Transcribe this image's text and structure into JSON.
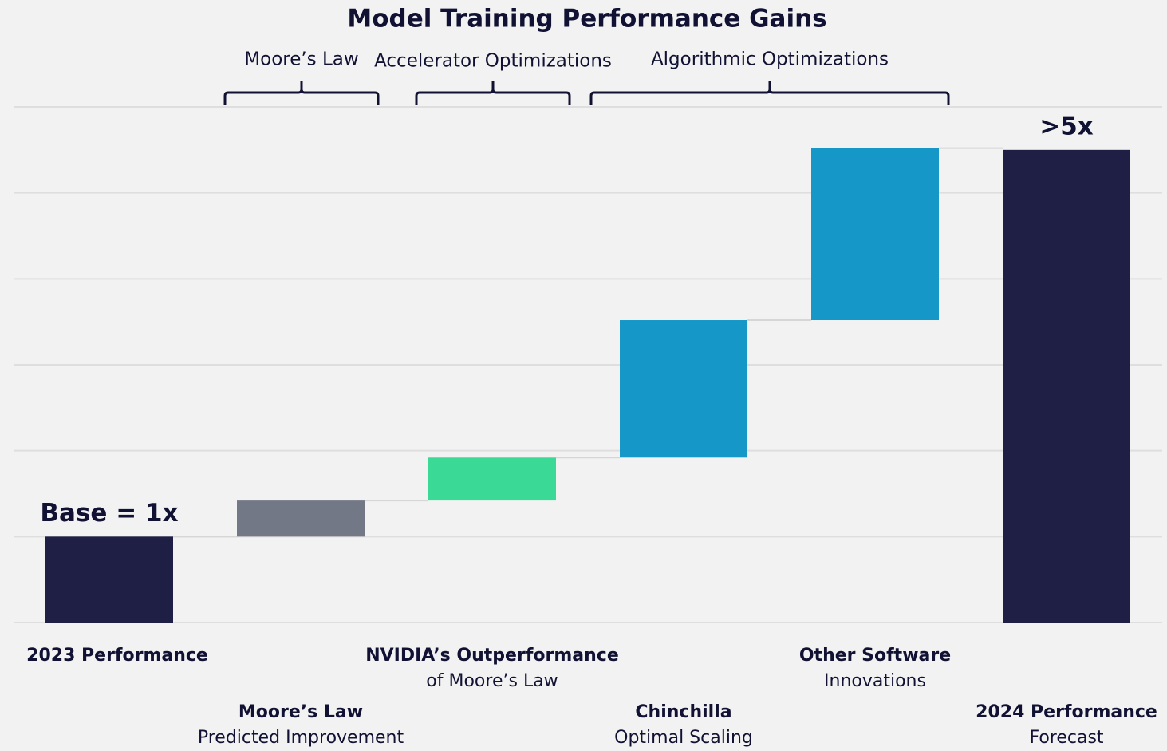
{
  "chart_data": {
    "type": "waterfall",
    "title": "Model Training Performance Gains",
    "groups": [
      "Moore’s Law",
      "Accelerator Optimizations",
      "Algorithmic Optimizations"
    ],
    "categories": [
      "2023 Performance",
      "Moore’s Law",
      "NVIDIA’s Outperformance",
      "Chinchilla",
      "Other Software",
      "2024 Performance"
    ],
    "sublabels": [
      null,
      "Predicted Improvement",
      "of Moore’s Law",
      "Optimal Scaling",
      "Innovations",
      "Forecast"
    ],
    "measure": [
      "absolute",
      "relative",
      "relative",
      "relative",
      "relative",
      "total"
    ],
    "values": [
      1,
      0.42,
      0.5,
      1.6,
      2.0,
      5.5
    ],
    "value_labels": [
      "Base = 1x",
      null,
      null,
      null,
      null,
      ">5x"
    ],
    "colors": [
      "#1f1f45",
      "#737886",
      "#3ad996",
      "#1598c8",
      "#1598c8",
      "#1f1f45"
    ],
    "ylim": [
      0,
      6
    ],
    "yticks": [
      0,
      1,
      2,
      3,
      4,
      5,
      6
    ],
    "grid": true
  }
}
